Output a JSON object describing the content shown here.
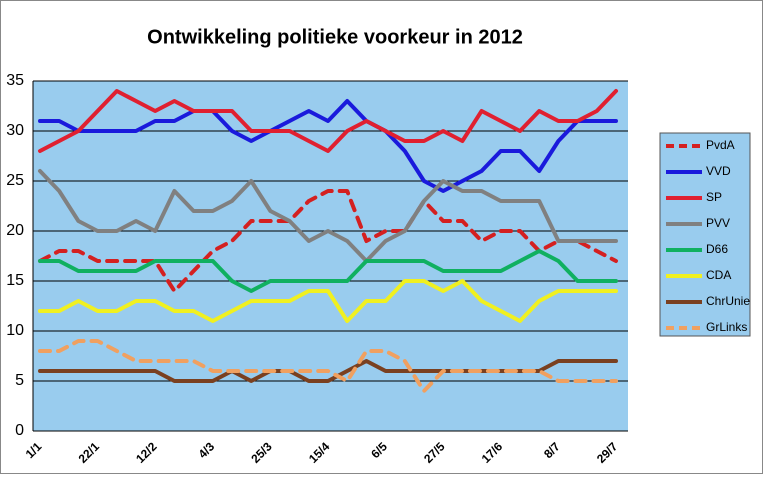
{
  "chart_data": {
    "type": "line",
    "title": "Ontwikkeling politieke voorkeur in 2012",
    "categories": [
      "1/1",
      null,
      null,
      "22/1",
      null,
      null,
      "12/2",
      null,
      null,
      "4/3",
      null,
      null,
      "25/3",
      null,
      null,
      "15/4",
      null,
      null,
      "6/5",
      null,
      null,
      "27/5",
      null,
      null,
      "17/6",
      null,
      null,
      "8/7",
      null,
      null,
      "29/7"
    ],
    "ylim": [
      0,
      35
    ],
    "yticks": [
      0,
      5,
      10,
      15,
      20,
      25,
      30,
      35
    ],
    "grid": true,
    "legend": "right",
    "series": [
      {
        "name": "PvdA",
        "color": "#d42020",
        "dashed": true,
        "values": [
          17,
          18,
          18,
          17,
          17,
          17,
          17,
          14,
          16,
          18,
          19,
          21,
          21,
          21,
          23,
          24,
          24,
          19,
          20,
          20,
          23,
          21,
          21,
          19,
          20,
          20,
          18,
          19,
          19,
          18,
          17
        ]
      },
      {
        "name": "VVD",
        "color": "#1a1adc",
        "dashed": false,
        "values": [
          31,
          31,
          30,
          30,
          30,
          30,
          31,
          31,
          32,
          32,
          30,
          29,
          30,
          31,
          32,
          31,
          33,
          31,
          30,
          28,
          25,
          24,
          25,
          26,
          28,
          28,
          26,
          29,
          31,
          31,
          31
        ]
      },
      {
        "name": "SP",
        "color": "#e02030",
        "dashed": false,
        "values": [
          28,
          29,
          30,
          32,
          34,
          33,
          32,
          33,
          32,
          32,
          32,
          30,
          30,
          30,
          29,
          28,
          30,
          31,
          30,
          29,
          29,
          30,
          29,
          32,
          31,
          30,
          32,
          31,
          31,
          32,
          34
        ]
      },
      {
        "name": "PVV",
        "color": "#808080",
        "dashed": false,
        "values": [
          26,
          24,
          21,
          20,
          20,
          21,
          20,
          24,
          22,
          22,
          23,
          25,
          22,
          21,
          19,
          20,
          19,
          17,
          19,
          20,
          23,
          25,
          24,
          24,
          23,
          23,
          23,
          19,
          19,
          19,
          19
        ]
      },
      {
        "name": "D66",
        "color": "#10b060",
        "dashed": false,
        "values": [
          17,
          17,
          16,
          16,
          16,
          16,
          17,
          17,
          17,
          17,
          15,
          14,
          15,
          15,
          15,
          15,
          15,
          17,
          17,
          17,
          17,
          16,
          16,
          16,
          16,
          17,
          18,
          17,
          15,
          15,
          15
        ]
      },
      {
        "name": "CDA",
        "color": "#f0f020",
        "dashed": false,
        "values": [
          12,
          12,
          13,
          12,
          12,
          13,
          13,
          12,
          12,
          11,
          12,
          13,
          13,
          13,
          14,
          14,
          11,
          13,
          13,
          15,
          15,
          14,
          15,
          13,
          12,
          11,
          13,
          14,
          14,
          14,
          14
        ]
      },
      {
        "name": "ChrUnie",
        "color": "#7a4020",
        "dashed": false,
        "values": [
          6,
          6,
          6,
          6,
          6,
          6,
          6,
          5,
          5,
          5,
          6,
          5,
          6,
          6,
          5,
          5,
          6,
          7,
          6,
          6,
          6,
          6,
          6,
          6,
          6,
          6,
          6,
          7,
          7,
          7,
          7
        ]
      },
      {
        "name": "GrLinks",
        "color": "#f0a060",
        "dashed": true,
        "values": [
          8,
          8,
          9,
          9,
          8,
          7,
          7,
          7,
          7,
          6,
          6,
          6,
          6,
          6,
          6,
          6,
          5,
          8,
          8,
          7,
          4,
          6,
          6,
          6,
          6,
          6,
          6,
          5,
          5,
          5,
          5
        ]
      }
    ]
  }
}
